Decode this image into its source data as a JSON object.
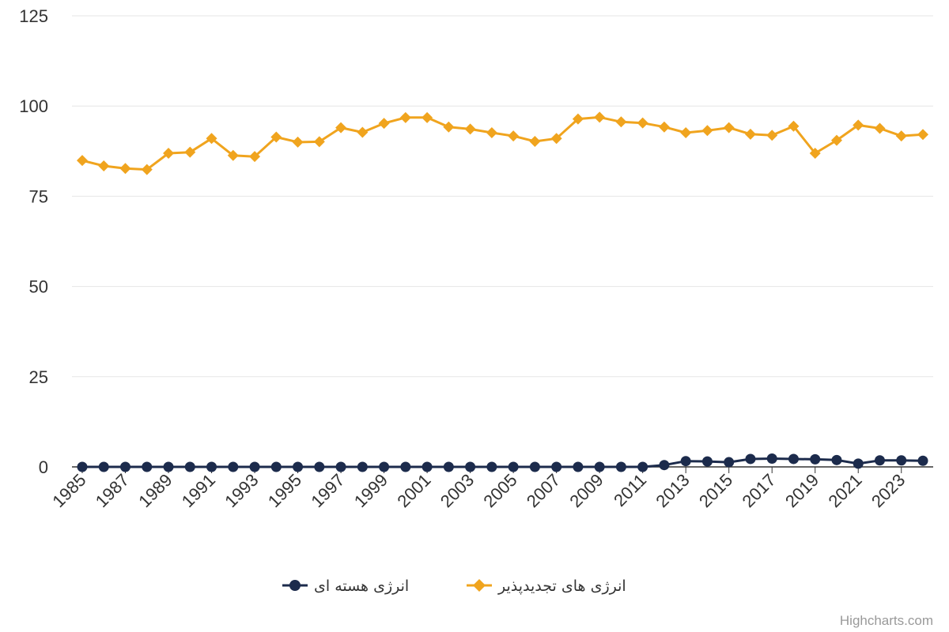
{
  "chart_data": {
    "type": "line",
    "title": "",
    "xlabel": "",
    "ylabel": "",
    "x": [
      1985,
      1986,
      1987,
      1988,
      1989,
      1990,
      1991,
      1992,
      1993,
      1994,
      1995,
      1996,
      1997,
      1998,
      1999,
      2000,
      2001,
      2002,
      2003,
      2004,
      2005,
      2006,
      2007,
      2008,
      2009,
      2010,
      2011,
      2012,
      2013,
      2014,
      2015,
      2016,
      2017,
      2018,
      2019,
      2020,
      2021,
      2022,
      2023,
      2024
    ],
    "x_tick_labels": [
      "1985",
      "1987",
      "1989",
      "1991",
      "1993",
      "1995",
      "1997",
      "1999",
      "2001",
      "2003",
      "2005",
      "2007",
      "2009",
      "2011",
      "2013",
      "2015",
      "2017",
      "2019",
      "2021",
      "2023"
    ],
    "ylim": [
      0,
      125
    ],
    "y_ticks": [
      0,
      25,
      50,
      75,
      100,
      125
    ],
    "grid": true,
    "legend_position": "bottom-center",
    "series": [
      {
        "name": "انرژی هسته ای",
        "color": "#1c2b4c",
        "marker": "circle",
        "values": [
          0,
          0,
          0,
          0,
          0,
          0,
          0,
          0,
          0,
          0,
          0,
          0,
          0,
          0,
          0,
          0,
          0,
          0,
          0,
          0,
          0,
          0,
          0,
          0,
          0,
          0,
          0,
          0.5,
          1.6,
          1.5,
          1.3,
          2.2,
          2.3,
          2.2,
          2.1,
          1.9,
          0.9,
          1.8,
          1.8,
          1.7
        ]
      },
      {
        "name": "انرژی های تجدیدپذیر",
        "color": "#f0a41e",
        "marker": "diamond",
        "values": [
          84.9,
          83.4,
          82.7,
          82.4,
          86.9,
          87.2,
          91.0,
          86.3,
          86.0,
          91.4,
          90.0,
          90.1,
          94.0,
          92.7,
          95.2,
          96.8,
          96.8,
          94.2,
          93.6,
          92.6,
          91.7,
          90.2,
          91.0,
          96.4,
          96.9,
          95.6,
          95.3,
          94.2,
          92.6,
          93.2,
          94.0,
          92.2,
          91.9,
          94.4,
          86.9,
          90.5,
          94.7,
          93.8,
          91.7,
          92.1
        ]
      }
    ]
  },
  "credit": "Highcharts.com"
}
